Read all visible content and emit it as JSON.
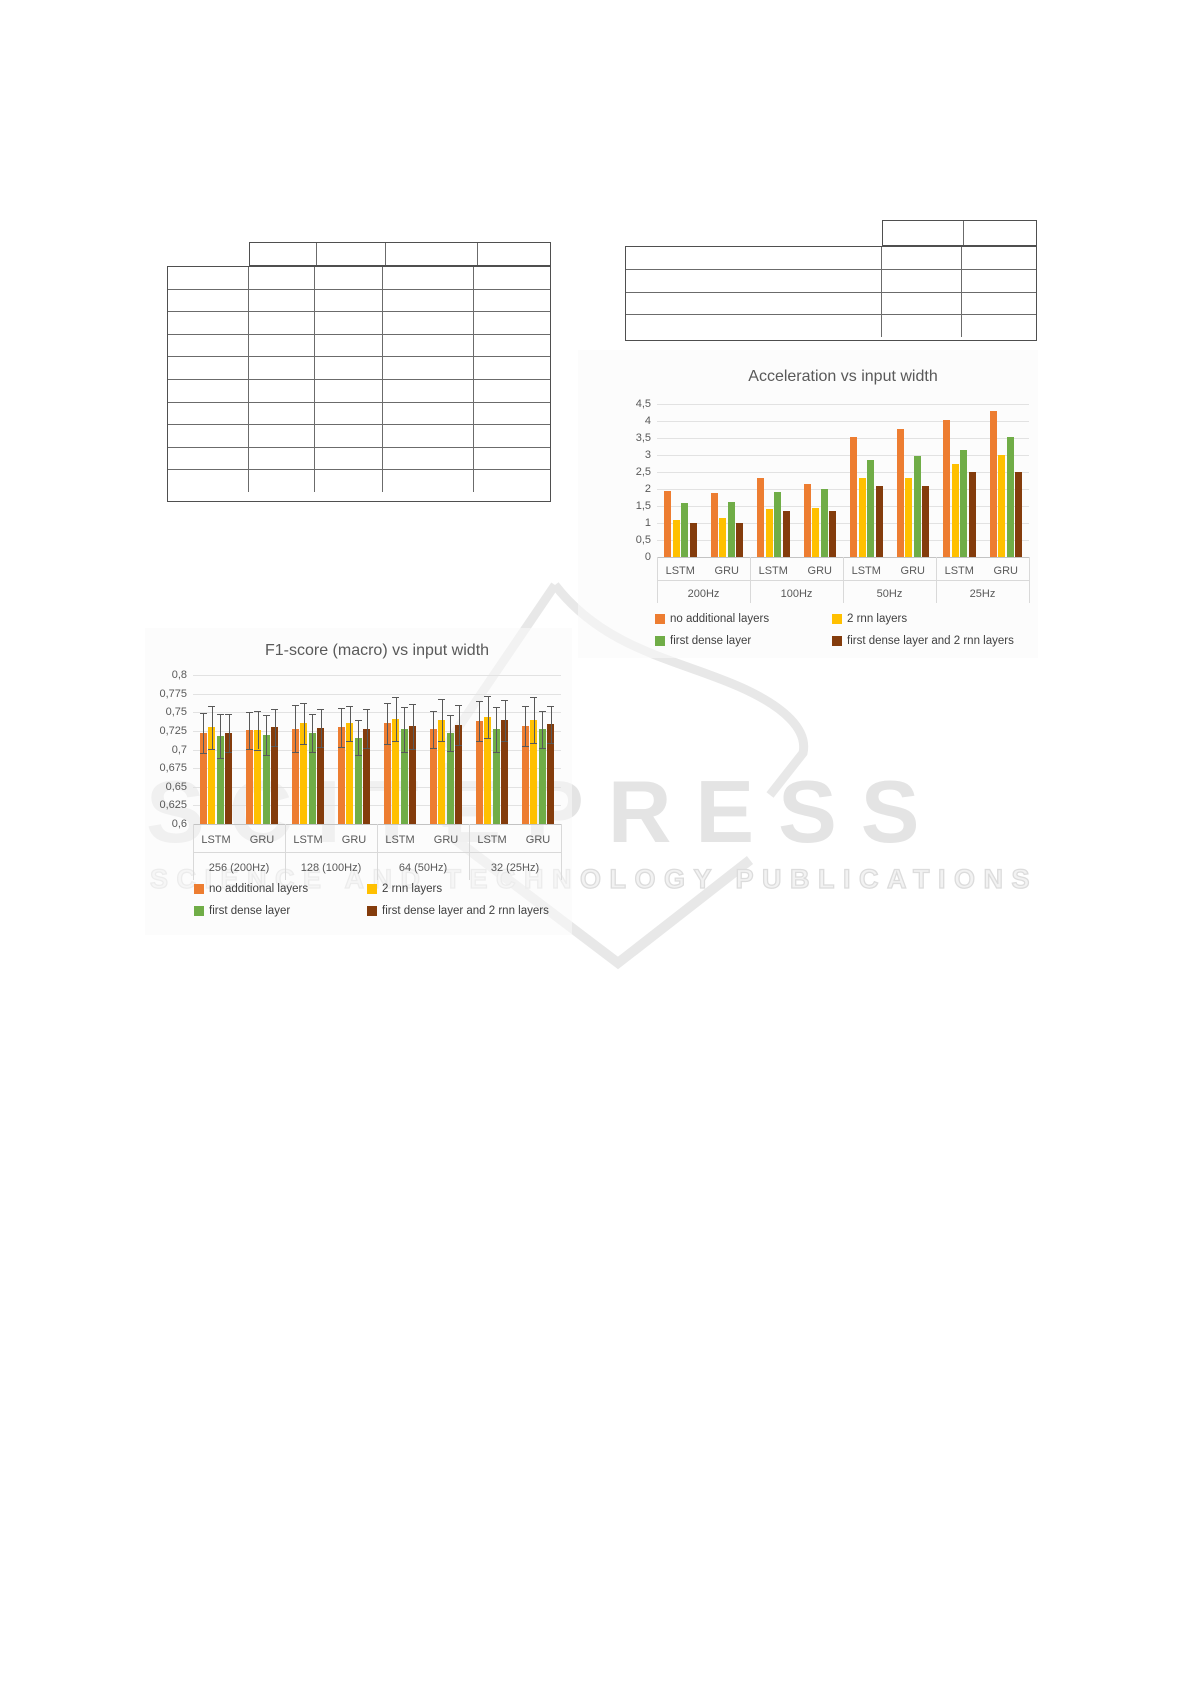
{
  "watermark": {
    "brand": "SCITEPRESS",
    "subtitle": "SCIENCE AND TECHNOLOGY PUBLICATIONS",
    "brand_color": "#e4e4e4",
    "logo_color": "#e8e8e8"
  },
  "tables": [
    {
      "name": "results-table-left",
      "header_cols": 4,
      "body_rows": 10,
      "body_cols": 5,
      "cells_empty": true
    },
    {
      "name": "results-table-right",
      "header_cols": 2,
      "body_rows": 4,
      "body_cols": 3,
      "cells_empty": true
    }
  ],
  "chart_data": [
    {
      "id": "accel",
      "type": "bar",
      "title": "Acceleration vs input width",
      "ylim": [
        0,
        4.5
      ],
      "y_ticks": [
        "4,5",
        "4",
        "3,5",
        "3",
        "2,5",
        "2",
        "1,5",
        "1",
        "0,5",
        "0"
      ],
      "grid": true,
      "groups": [
        "200Hz",
        "100Hz",
        "50Hz",
        "25Hz"
      ],
      "subgroups": [
        "LSTM",
        "GRU"
      ],
      "legend_position": "bottom",
      "series": [
        {
          "name": "no additional layers",
          "color": "#ED7D31",
          "values": [
            1.93,
            1.88,
            2.32,
            2.15,
            3.53,
            3.76,
            4.03,
            4.28
          ]
        },
        {
          "name": "2 rnn layers",
          "color": "#FFC000",
          "values": [
            1.1,
            1.15,
            1.42,
            1.45,
            2.32,
            2.32,
            2.73,
            3.0
          ]
        },
        {
          "name": "first dense layer",
          "color": "#70AD47",
          "values": [
            1.58,
            1.61,
            1.92,
            2.0,
            2.86,
            2.98,
            3.15,
            3.53
          ]
        },
        {
          "name": "first dense layer and 2 rnn layers",
          "color": "#843C0C",
          "values": [
            1.0,
            1.0,
            1.36,
            1.36,
            2.08,
            2.08,
            2.5,
            2.5
          ]
        }
      ]
    },
    {
      "id": "f1",
      "type": "bar",
      "title": "F1-score (macro) vs input width",
      "ylim": [
        0.6,
        0.8
      ],
      "y_ticks": [
        "0,8",
        "0,775",
        "0,75",
        "0,725",
        "0,7",
        "0,675",
        "0,65",
        "0,625",
        "0,6"
      ],
      "grid": true,
      "groups": [
        "256 (200Hz)",
        "128 (100Hz)",
        "64 (50Hz)",
        "32 (25Hz)"
      ],
      "subgroups": [
        "LSTM",
        "GRU"
      ],
      "legend_position": "bottom",
      "error_bars": true,
      "series": [
        {
          "name": "no additional layers",
          "color": "#ED7D31",
          "values": [
            0.722,
            0.726,
            0.728,
            0.73,
            0.735,
            0.727,
            0.738,
            0.732
          ],
          "errors": [
            0.027,
            0.025,
            0.032,
            0.026,
            0.028,
            0.025,
            0.027,
            0.027
          ]
        },
        {
          "name": "2 rnn layers",
          "color": "#FFC000",
          "values": [
            0.73,
            0.726,
            0.735,
            0.735,
            0.741,
            0.74,
            0.744,
            0.74
          ],
          "errors": [
            0.029,
            0.026,
            0.027,
            0.024,
            0.03,
            0.028,
            0.028,
            0.031
          ]
        },
        {
          "name": "first dense layer",
          "color": "#70AD47",
          "values": [
            0.718,
            0.719,
            0.722,
            0.716,
            0.727,
            0.722,
            0.727,
            0.727
          ],
          "errors": [
            0.03,
            0.027,
            0.026,
            0.024,
            0.03,
            0.024,
            0.03,
            0.025
          ]
        },
        {
          "name": "first dense layer and 2 rnn layers",
          "color": "#843C0C",
          "values": [
            0.722,
            0.73,
            0.729,
            0.728,
            0.731,
            0.733,
            0.739,
            0.734
          ],
          "errors": [
            0.025,
            0.025,
            0.025,
            0.026,
            0.03,
            0.027,
            0.028,
            0.025
          ]
        }
      ]
    }
  ]
}
